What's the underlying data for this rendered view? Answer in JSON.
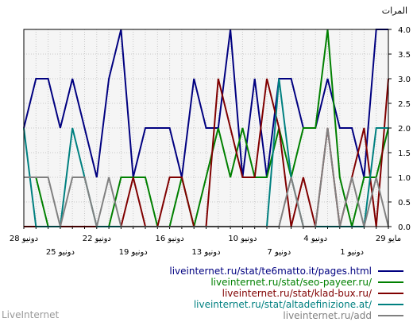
{
  "chart_data": {
    "type": "line",
    "ylabel": "المرات",
    "ylim": [
      0,
      4
    ],
    "yticks": [
      "0.0",
      "0.5",
      "1.0",
      "1.5",
      "2.0",
      "2.5",
      "3.0",
      "3.5",
      "4.0"
    ],
    "grid": true,
    "xlabels": [
      {
        "text": "28 دونيو",
        "row": 1
      },
      {
        "text": "25 دونيو",
        "row": 2
      },
      {
        "text": "22 دونيو",
        "row": 1
      },
      {
        "text": "19 دونيو",
        "row": 2
      },
      {
        "text": "16 دونيو",
        "row": 1
      },
      {
        "text": "13 دونيو",
        "row": 2
      },
      {
        "text": "10 دونيو",
        "row": 1
      },
      {
        "text": "7 دونيو",
        "row": 2
      },
      {
        "text": "4 دونيو",
        "row": 1
      },
      {
        "text": "1 دونيو",
        "row": 2
      },
      {
        "text": "29 مايو",
        "row": 1
      }
    ],
    "n_points": 31,
    "series": [
      {
        "name": "liveinternet.ru/stat/te6matto.it/pages.html",
        "color": "#000080",
        "values": [
          2,
          3,
          3,
          2,
          3,
          2,
          1,
          3,
          4,
          1,
          2,
          2,
          2,
          1,
          3,
          2,
          2,
          4,
          1,
          3,
          1,
          3,
          3,
          2,
          2,
          3,
          2,
          2,
          1,
          4,
          4
        ]
      },
      {
        "name": "liveinternet.ru/stat/seo-payeer.ru/",
        "color": "#008000",
        "values": [
          1,
          1,
          0,
          0,
          0,
          0,
          0,
          0,
          1,
          1,
          1,
          0,
          0,
          1,
          0,
          1,
          2,
          1,
          2,
          1,
          1,
          2,
          1,
          2,
          2,
          4,
          1,
          0,
          1,
          1,
          2
        ]
      },
      {
        "name": "liveinternet.ru/stat/klad-bux.ru/",
        "color": "#800000",
        "values": [
          0,
          0,
          0,
          0,
          0,
          0,
          0,
          0,
          0,
          1,
          0,
          0,
          1,
          1,
          0,
          0,
          3,
          2,
          1,
          1,
          3,
          2,
          0,
          1,
          0,
          2,
          0,
          1,
          2,
          0,
          3
        ]
      },
      {
        "name": "liveinternet.ru/stat/altadefinizione.at/",
        "color": "#008080",
        "values": [
          2,
          0,
          0,
          0,
          2,
          1,
          0,
          0,
          0,
          0,
          0,
          0,
          0,
          0,
          0,
          0,
          0,
          0,
          0,
          0,
          0,
          3,
          1,
          0,
          0,
          0,
          0,
          0,
          0,
          2,
          2
        ]
      },
      {
        "name": "liveinternet.ru/add",
        "color": "#808080",
        "values": [
          1,
          1,
          1,
          0,
          1,
          1,
          0,
          1,
          0,
          0,
          0,
          0,
          0,
          0,
          0,
          0,
          0,
          0,
          0,
          0,
          0,
          0,
          1,
          0,
          0,
          2,
          0,
          1,
          0,
          1,
          0
        ]
      }
    ]
  },
  "footer": {
    "brand": "LiveInternet"
  }
}
